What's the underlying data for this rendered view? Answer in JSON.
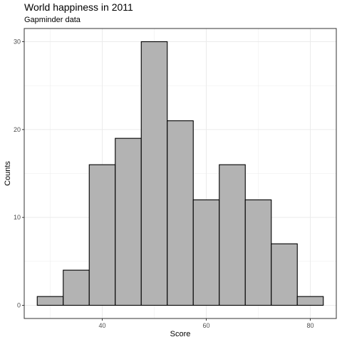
{
  "chart_data": {
    "type": "bar",
    "title": "World happiness in 2011",
    "subtitle": "Gapminder data",
    "xlabel": "Score",
    "ylabel": "Counts",
    "xlim": [
      25,
      85
    ],
    "ylim": [
      -1.5,
      31.5
    ],
    "x_ticks": [
      40,
      60,
      80
    ],
    "y_ticks": [
      0,
      10,
      20,
      30
    ],
    "grid": true,
    "bin_width": 5,
    "bins": [
      {
        "start": 27.5,
        "end": 32.5,
        "count": 1
      },
      {
        "start": 32.5,
        "end": 37.5,
        "count": 4
      },
      {
        "start": 37.5,
        "end": 42.5,
        "count": 16
      },
      {
        "start": 42.5,
        "end": 47.5,
        "count": 19
      },
      {
        "start": 47.5,
        "end": 52.5,
        "count": 30
      },
      {
        "start": 52.5,
        "end": 57.5,
        "count": 21
      },
      {
        "start": 57.5,
        "end": 62.5,
        "count": 12
      },
      {
        "start": 62.5,
        "end": 67.5,
        "count": 16
      },
      {
        "start": 67.5,
        "end": 72.5,
        "count": 12
      },
      {
        "start": 72.5,
        "end": 77.5,
        "count": 7
      },
      {
        "start": 77.5,
        "end": 82.5,
        "count": 1
      }
    ],
    "colors": {
      "bar_fill": "#b3b3b3",
      "bar_stroke": "#000000",
      "grid": "#ebebeb",
      "panel_border": "#333333",
      "tick_label": "#4d4d4d"
    }
  }
}
